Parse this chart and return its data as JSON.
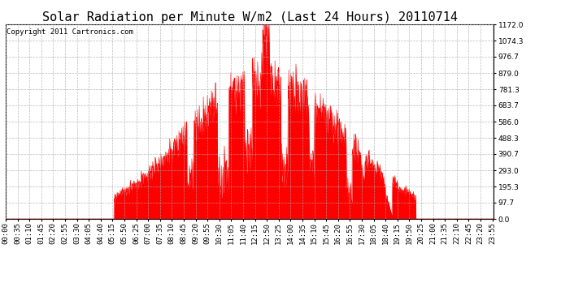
{
  "title": "Solar Radiation per Minute W/m2 (Last 24 Hours) 20110714",
  "copyright": "Copyright 2011 Cartronics.com",
  "ymin": 0.0,
  "ymax": 1172.0,
  "yticks": [
    0.0,
    97.7,
    195.3,
    293.0,
    390.7,
    488.3,
    586.0,
    683.7,
    781.3,
    879.0,
    976.7,
    1074.3,
    1172.0
  ],
  "fill_color": "#FF0000",
  "line_color": "#FF0000",
  "bg_color": "#FFFFFF",
  "grid_color": "#AAAAAA",
  "dashed_line_color": "#FF0000",
  "title_fontsize": 11,
  "tick_fontsize": 6.5,
  "copyright_fontsize": 6.5,
  "total_minutes": 1440,
  "sunrise": 320,
  "sunset": 1210,
  "peak_minute": 755,
  "peak_value": 1172.0
}
